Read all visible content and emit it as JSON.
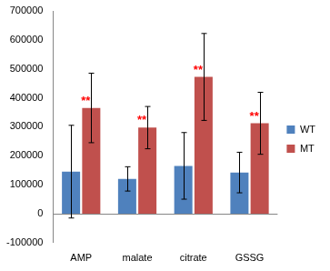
{
  "chart_data": {
    "type": "bar",
    "categories": [
      "AMP",
      "malate",
      "citrate",
      "GSSG"
    ],
    "series": [
      {
        "name": "WT",
        "color": "#4f81bd",
        "values": [
          145000,
          120000,
          165000,
          142000
        ],
        "errors": [
          160000,
          42000,
          115000,
          70000
        ]
      },
      {
        "name": "MT",
        "color": "#c0504d",
        "values": [
          365000,
          297000,
          472000,
          312000
        ],
        "errors": [
          120000,
          73000,
          150000,
          107000
        ]
      }
    ],
    "ylim": [
      -100000,
      700000
    ],
    "yticks": [
      -100000,
      0,
      100000,
      200000,
      300000,
      400000,
      500000,
      600000,
      700000
    ],
    "grid": false,
    "legend": "right",
    "annotations": [
      {
        "text": "**",
        "category": "AMP",
        "series": "MT",
        "color": "#ff0000"
      },
      {
        "text": "**",
        "category": "malate",
        "series": "MT",
        "color": "#ff0000"
      },
      {
        "text": "**",
        "category": "citrate",
        "series": "MT",
        "color": "#ff0000"
      },
      {
        "text": "**",
        "category": "GSSG",
        "series": "MT",
        "color": "#ff0000"
      }
    ]
  }
}
